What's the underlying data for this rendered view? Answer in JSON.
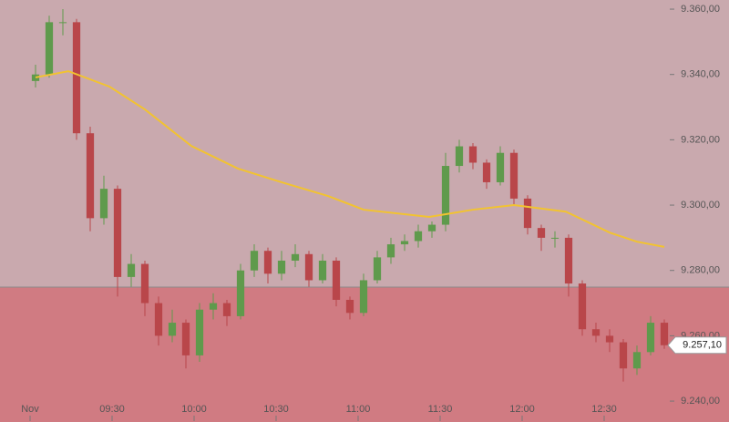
{
  "chart_data": {
    "type": "candlestick",
    "x": [
      2,
      7,
      12,
      17,
      22,
      27,
      32,
      37,
      42,
      47,
      52,
      57,
      62,
      67,
      72,
      77,
      82,
      87,
      92,
      97,
      102,
      107,
      112,
      117,
      122,
      127,
      132,
      137,
      142,
      147,
      152,
      157,
      162,
      167,
      172,
      177,
      182,
      187,
      192,
      197,
      202,
      207,
      212,
      217,
      222,
      227,
      232
    ],
    "open": [
      9338,
      9340,
      9356,
      9356,
      9322,
      9296,
      9305,
      9278,
      9282,
      9270,
      9260,
      9264,
      9254,
      9268,
      9270,
      9266,
      9280,
      9286,
      9279,
      9283,
      9285,
      9277,
      9283,
      9271,
      9267,
      9277,
      9284,
      9288,
      9289,
      9292,
      9294,
      9312,
      9318,
      9313,
      9307,
      9316,
      9302,
      9293,
      9290,
      9290,
      9276,
      9262,
      9260,
      9258,
      9250,
      9255,
      9264
    ],
    "high": [
      9343,
      9358,
      9360,
      9357,
      9324,
      9309,
      9306,
      9285,
      9283,
      9272,
      9268,
      9265,
      9270,
      9273,
      9271,
      9282,
      9288,
      9287,
      9286,
      9288,
      9286,
      9285,
      9284,
      9272,
      9279,
      9286,
      9290,
      9291,
      9294,
      9295,
      9316,
      9320,
      9319,
      9314,
      9318,
      9317,
      9303,
      9294,
      9292,
      9291,
      9277,
      9264,
      9262,
      9259,
      9257,
      9266,
      9265
    ],
    "low": [
      9336,
      9339,
      9352,
      9320,
      9292,
      9294,
      9272,
      9275,
      9266,
      9257,
      9258,
      9250,
      9252,
      9265,
      9263,
      9265,
      9278,
      9276,
      9277,
      9281,
      9275,
      9276,
      9269,
      9265,
      9266,
      9276,
      9282,
      9286,
      9287,
      9290,
      9292,
      9310,
      9311,
      9305,
      9306,
      9300,
      9291,
      9286,
      9287,
      9272,
      9260,
      9258,
      9255,
      9246,
      9248,
      9254,
      9256
    ],
    "close": [
      9340,
      9356,
      9356,
      9322,
      9296,
      9305,
      9278,
      9282,
      9270,
      9260,
      9264,
      9254,
      9268,
      9270,
      9266,
      9280,
      9286,
      9279,
      9283,
      9285,
      9277,
      9283,
      9271,
      9267,
      9277,
      9284,
      9288,
      9289,
      9292,
      9294,
      9312,
      9318,
      9313,
      9307,
      9316,
      9302,
      9293,
      9290,
      9290,
      9276,
      9262,
      9260,
      9258,
      9250,
      9255,
      9264,
      9257.1
    ],
    "up_color": "#5f9a4c",
    "down_color": "#b9464a",
    "moving_average": {
      "color": "#f2c330",
      "x": [
        2,
        14,
        29,
        42,
        59,
        76,
        92,
        109,
        122,
        146,
        162,
        177,
        196,
        212,
        222,
        232
      ],
      "values": [
        9339.1,
        9341,
        9336.3,
        9329.3,
        9318.1,
        9311.2,
        9307,
        9302.8,
        9298.6,
        9296.4,
        9298.6,
        9300,
        9298,
        9291.6,
        9288.8,
        9287.2
      ]
    },
    "reference_level": 9274.9,
    "last_price": {
      "value": 9257.1,
      "label": "9.257,10"
    },
    "xlim": [
      -11,
      234
    ],
    "ylim": [
      9233.6,
      9362.8
    ],
    "xticks": [
      {
        "value": 0,
        "label": "Nov"
      },
      {
        "value": 30,
        "label": "09:30"
      },
      {
        "value": 60,
        "label": "10:00"
      },
      {
        "value": 90,
        "label": "10:30"
      },
      {
        "value": 120,
        "label": "11:00"
      },
      {
        "value": 150,
        "label": "11:30"
      },
      {
        "value": 180,
        "label": "12:00"
      },
      {
        "value": 210,
        "label": "12:30"
      }
    ],
    "yticks": [
      {
        "value": 9240,
        "label": "9.240,00"
      },
      {
        "value": 9260,
        "label": "9.260,00"
      },
      {
        "value": 9280,
        "label": "9.280,00"
      },
      {
        "value": 9300,
        "label": "9.300,00"
      },
      {
        "value": 9320,
        "label": "9.320,00"
      },
      {
        "value": 9340,
        "label": "9.340,00"
      },
      {
        "value": 9360,
        "label": "9.360,00"
      }
    ]
  }
}
